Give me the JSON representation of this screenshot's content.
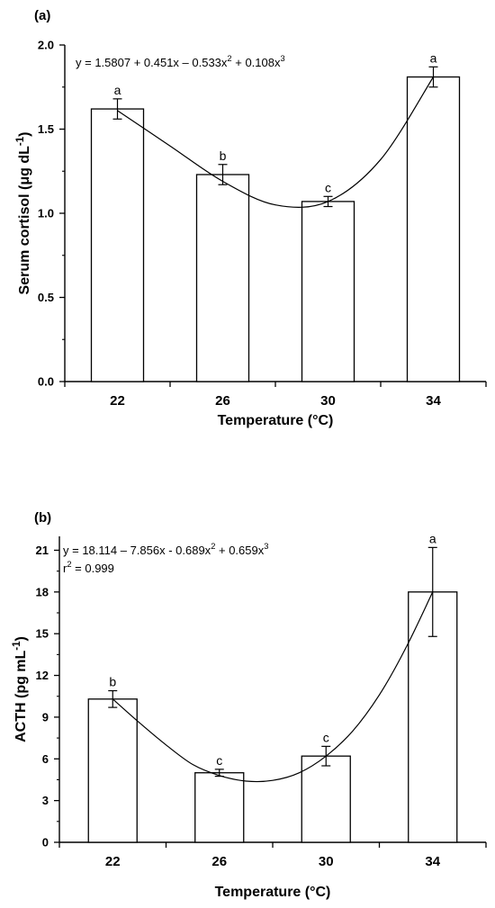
{
  "chart_data": [
    {
      "type": "bar",
      "panel_label": "(a)",
      "categories": [
        "22",
        "26",
        "30",
        "34"
      ],
      "x": [
        22,
        26,
        30,
        34
      ],
      "values": [
        1.62,
        1.23,
        1.07,
        1.81
      ],
      "errors": [
        0.06,
        0.06,
        0.03,
        0.06
      ],
      "letters": [
        "a",
        "b",
        "c",
        "a"
      ],
      "xlabel": "Temperature (°C)",
      "ylabel": "Serum cortisol (μg dL⁻¹)",
      "ylim": [
        0,
        2.0
      ],
      "yticks": [
        "0.0",
        "0.5",
        "1.0",
        "1.5",
        "2.0"
      ],
      "yticks_values": [
        0,
        0.5,
        1.0,
        1.5,
        2.0
      ],
      "equation": "y = 1.5807 + 0.451x – 0.533x² + 0.108x³",
      "r2": "",
      "fit_curve": {
        "type": "cubic",
        "points": [
          [
            22,
            1.61
          ],
          [
            24,
            1.4
          ],
          [
            26,
            1.19
          ],
          [
            28,
            1.05
          ],
          [
            30,
            1.07
          ],
          [
            32,
            1.32
          ],
          [
            34,
            1.81
          ]
        ]
      },
      "grid": false,
      "bar_fill": "#ffffff",
      "stroke_color": "#000000"
    },
    {
      "type": "bar",
      "panel_label": "(b)",
      "categories": [
        "22",
        "26",
        "30",
        "34"
      ],
      "x": [
        22,
        26,
        30,
        34
      ],
      "values": [
        10.3,
        5.0,
        6.2,
        18.0
      ],
      "errors": [
        0.6,
        0.25,
        0.7,
        3.2
      ],
      "letters": [
        "b",
        "c",
        "c",
        "a"
      ],
      "xlabel": "Temperature (°C)",
      "ylabel": "ACTH (pg mL⁻¹)",
      "ylim": [
        0,
        22
      ],
      "yticks": [
        "0",
        "3",
        "6",
        "9",
        "12",
        "15",
        "18",
        "21"
      ],
      "yticks_values": [
        0,
        3,
        6,
        9,
        12,
        15,
        18,
        21
      ],
      "equation": "y = 18.114 – 7.856x - 0.689x² + 0.659x³",
      "r2": "r² = 0.999",
      "fit_curve": {
        "type": "cubic",
        "points": [
          [
            22,
            10.3
          ],
          [
            23,
            8.6
          ],
          [
            24,
            7.0
          ],
          [
            25,
            5.6
          ],
          [
            26,
            4.8
          ],
          [
            27,
            4.4
          ],
          [
            28,
            4.45
          ],
          [
            29,
            5.0
          ],
          [
            30,
            6.2
          ],
          [
            31,
            8.0
          ],
          [
            32,
            10.6
          ],
          [
            33,
            14.0
          ],
          [
            34,
            18.0
          ]
        ]
      },
      "grid": false,
      "bar_fill": "#ffffff",
      "stroke_color": "#000000"
    }
  ]
}
